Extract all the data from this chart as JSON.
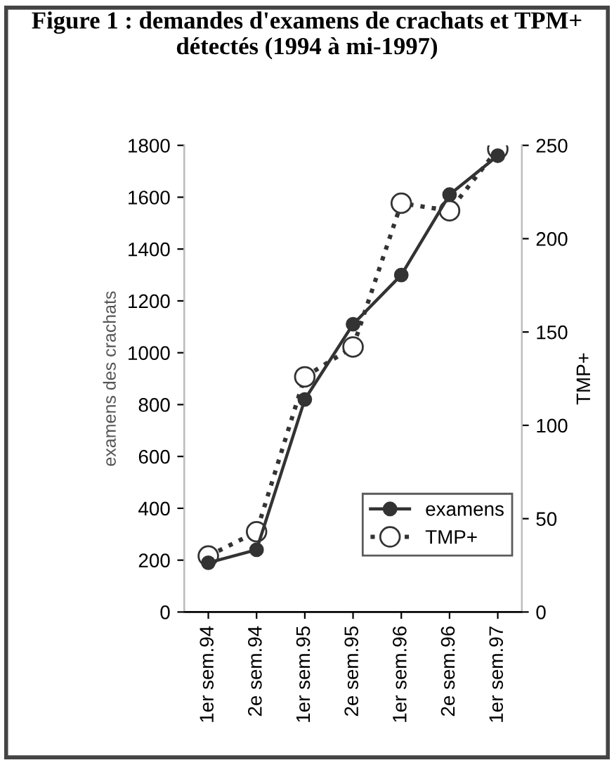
{
  "chart_data": {
    "type": "line",
    "title": "Figure 1 : demandes d'examens de crachats et TPM+ détectés (1994 à mi-1997)",
    "categories": [
      "1er sem.94",
      "2e sem.94",
      "1er sem.95",
      "2e sem.95",
      "1er sem.96",
      "2e sem.96",
      "1er sem.97"
    ],
    "ylabel": "examens des crachats",
    "y2label": "TMP+",
    "ylim": [
      0,
      1800
    ],
    "yticks": [
      0,
      200,
      400,
      600,
      800,
      1000,
      1200,
      1400,
      1600,
      1800
    ],
    "y2lim": [
      0,
      250
    ],
    "y2ticks": [
      0,
      50,
      100,
      150,
      200,
      250
    ],
    "series": [
      {
        "name": "examens",
        "color": "#333333",
        "marker": "circle",
        "line_style": "solid",
        "values": [
          190,
          240,
          820,
          1110,
          1300,
          1610,
          1760
        ]
      },
      {
        "name": "TMP+",
        "color": "#333333",
        "marker": "open circle",
        "line_style": "dotted",
        "axis": "y2",
        "values": [
          30,
          43,
          126,
          142,
          219,
          215,
          248
        ]
      }
    ],
    "legend": "bottom right",
    "grid": false
  }
}
